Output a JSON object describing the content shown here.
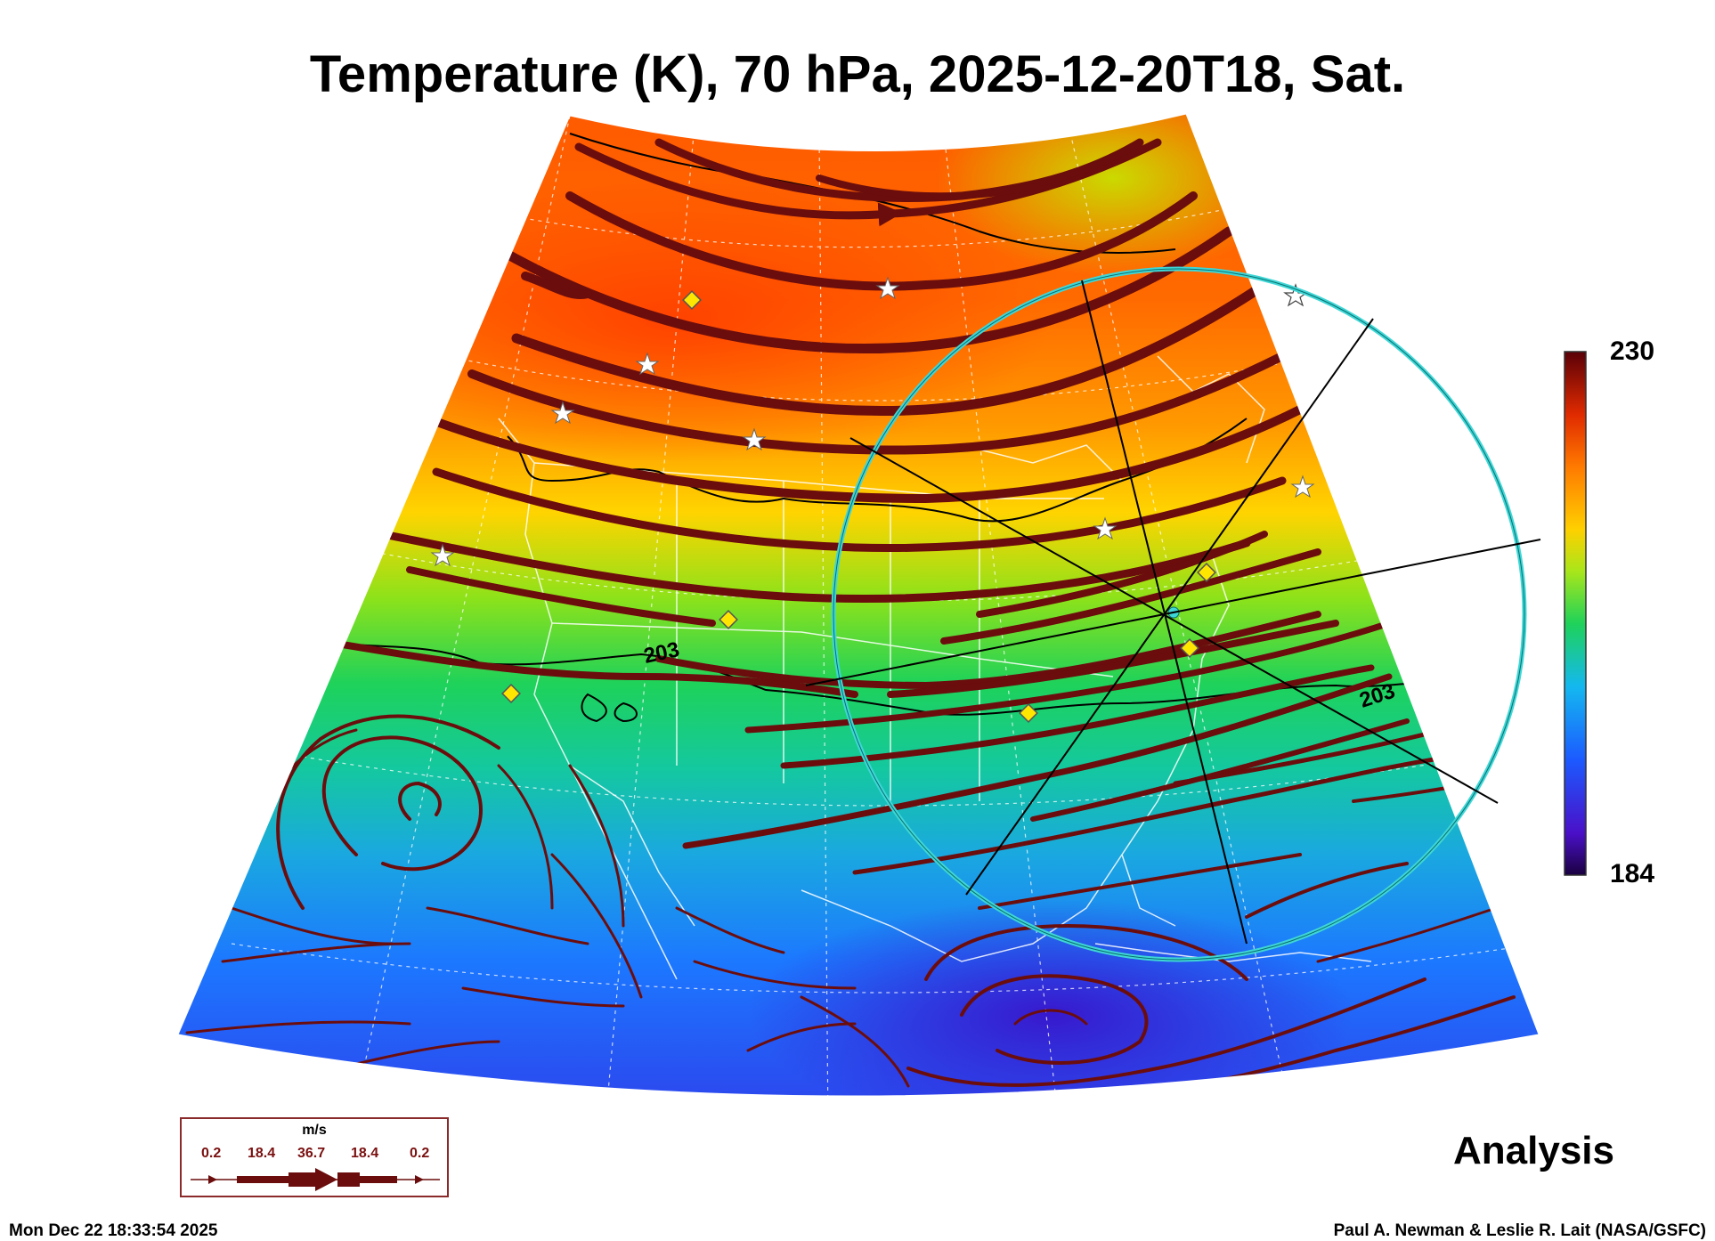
{
  "title": "Temperature (K), 70 hPa, 2025-12-20T18, Sat.",
  "colorbar": {
    "max": "230",
    "min": "184"
  },
  "contour_labels": [
    "203",
    "203"
  ],
  "legend": {
    "unit": "m/s",
    "values": [
      "0.2",
      "18.4",
      "36.7",
      "18.4",
      "0.2"
    ]
  },
  "analysis_label": "Analysis",
  "timestamp": "Mon Dec 22 18:33:54 2025",
  "credit": "Paul A. Newman & Leslie R. Lait (NASA/GSFC)",
  "colors": {
    "cold": "#2b0f7a",
    "cool": "#1a6cff",
    "mid": "#1fd14a",
    "warm": "#ffc800",
    "hot": "#ff4a00",
    "max": "#6a0008",
    "streamline": "#6b0d0d",
    "circle": "#3fd6d6"
  }
}
